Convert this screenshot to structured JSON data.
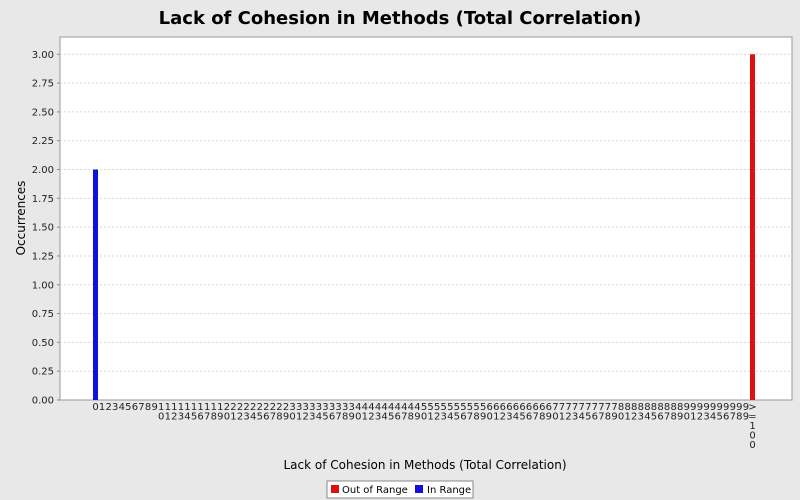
{
  "chart_data": {
    "type": "bar",
    "title": "Lack of Cohesion in Methods (Total Correlation)",
    "xlabel": "Lack of Cohesion in Methods (Total Correlation)",
    "ylabel": "Occurrences",
    "categories": [
      "0",
      "1",
      "2",
      "3",
      "4",
      "5",
      "6",
      "7",
      "8",
      "9",
      "10",
      "11",
      "12",
      "13",
      "14",
      "15",
      "16",
      "17",
      "18",
      "19",
      "20",
      "21",
      "22",
      "23",
      "24",
      "25",
      "26",
      "27",
      "28",
      "29",
      "30",
      "31",
      "32",
      "33",
      "34",
      "35",
      "36",
      "37",
      "38",
      "39",
      "40",
      "41",
      "42",
      "43",
      "44",
      "45",
      "46",
      "47",
      "48",
      "49",
      "50",
      "51",
      "52",
      "53",
      "54",
      "55",
      "56",
      "57",
      "58",
      "59",
      "60",
      "61",
      "62",
      "63",
      "64",
      "65",
      "66",
      "67",
      "68",
      "69",
      "70",
      "71",
      "72",
      "73",
      "74",
      "75",
      "76",
      "77",
      "78",
      "79",
      "80",
      "81",
      "82",
      "83",
      "84",
      "85",
      "86",
      "87",
      "88",
      "89",
      "90",
      "91",
      "92",
      "93",
      "94",
      "95",
      "96",
      "97",
      "98",
      "99",
      ">=100"
    ],
    "series": [
      {
        "name": "Out of Range",
        "color": "#dd1111",
        "values": [
          0,
          0,
          0,
          0,
          0,
          0,
          0,
          0,
          0,
          0,
          0,
          0,
          0,
          0,
          0,
          0,
          0,
          0,
          0,
          0,
          0,
          0,
          0,
          0,
          0,
          0,
          0,
          0,
          0,
          0,
          0,
          0,
          0,
          0,
          0,
          0,
          0,
          0,
          0,
          0,
          0,
          0,
          0,
          0,
          0,
          0,
          0,
          0,
          0,
          0,
          0,
          0,
          0,
          0,
          0,
          0,
          0,
          0,
          0,
          0,
          0,
          0,
          0,
          0,
          0,
          0,
          0,
          0,
          0,
          0,
          0,
          0,
          0,
          0,
          0,
          0,
          0,
          0,
          0,
          0,
          0,
          0,
          0,
          0,
          0,
          0,
          0,
          0,
          0,
          0,
          0,
          0,
          0,
          0,
          0,
          0,
          0,
          0,
          0,
          0,
          3
        ]
      },
      {
        "name": "In Range",
        "color": "#1111dd",
        "values": [
          2,
          0,
          0,
          0,
          0,
          0,
          0,
          0,
          0,
          0,
          0,
          0,
          0,
          0,
          0,
          0,
          0,
          0,
          0,
          0,
          0,
          0,
          0,
          0,
          0,
          0,
          0,
          0,
          0,
          0,
          0,
          0,
          0,
          0,
          0,
          0,
          0,
          0,
          0,
          0,
          0,
          0,
          0,
          0,
          0,
          0,
          0,
          0,
          0,
          0,
          0,
          0,
          0,
          0,
          0,
          0,
          0,
          0,
          0,
          0,
          0,
          0,
          0,
          0,
          0,
          0,
          0,
          0,
          0,
          0,
          0,
          0,
          0,
          0,
          0,
          0,
          0,
          0,
          0,
          0,
          0,
          0,
          0,
          0,
          0,
          0,
          0,
          0,
          0,
          0,
          0,
          0,
          0,
          0,
          0,
          0,
          0,
          0,
          0,
          0,
          0
        ]
      }
    ],
    "yticks": [
      "0.00",
      "0.25",
      "0.50",
      "0.75",
      "1.00",
      "1.25",
      "1.50",
      "1.75",
      "2.00",
      "2.25",
      "2.50",
      "2.75",
      "3.00"
    ],
    "ylim": [
      0,
      3.15
    ],
    "grid": true,
    "legend_position": "bottom"
  }
}
